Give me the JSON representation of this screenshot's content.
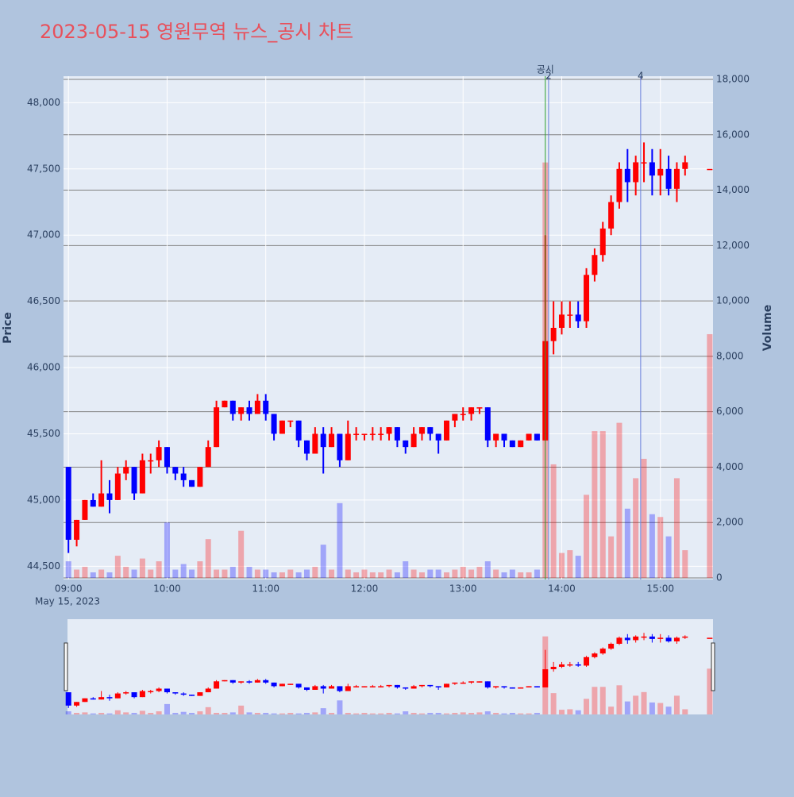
{
  "chart_data": {
    "type": "candlestick",
    "title": "2023-05-15 영원무역 뉴스_공시 차트",
    "x_date_label": "May 15, 2023",
    "y_label": "Price",
    "y2_label": "Volume",
    "increasing_color": "#ff0000",
    "decreasing_color": "#0000ff",
    "xlim": [
      "08:57",
      "15:32"
    ],
    "xticks": [
      "09:00",
      "10:00",
      "11:00",
      "12:00",
      "13:00",
      "14:00",
      "15:00"
    ],
    "ylim": [
      44400,
      48200
    ],
    "yticks": [
      {
        "value": 44500,
        "label": "44,500"
      },
      {
        "value": 45000,
        "label": "45,000"
      },
      {
        "value": 45500,
        "label": "45,500"
      },
      {
        "value": 46000,
        "label": "46,000"
      },
      {
        "value": 46500,
        "label": "46,500"
      },
      {
        "value": 47000,
        "label": "47,000"
      },
      {
        "value": 47500,
        "label": "47,500"
      },
      {
        "value": 48000,
        "label": "48,000"
      }
    ],
    "y2lim": [
      0,
      18000
    ],
    "y2ticks": [
      0,
      {
        "value": 2000,
        "label": "2,000"
      },
      {
        "value": 4000,
        "label": "4,000"
      },
      {
        "value": 6000,
        "label": "6,000"
      },
      {
        "value": 8000,
        "label": "8,000"
      },
      {
        "value": 10000,
        "label": "10,000"
      },
      {
        "value": 12000,
        "label": "12,000"
      },
      {
        "value": 14000,
        "label": "14,000"
      },
      {
        "value": 16000,
        "label": "16,000"
      },
      {
        "value": 18000,
        "label": "18,000"
      }
    ],
    "annotations": [
      {
        "x": "13:50",
        "text": "공시",
        "color": "#2ca02c"
      },
      {
        "x": "13:52",
        "text": "2",
        "color": "#6a7fdb"
      },
      {
        "x": "14:48",
        "text": "4",
        "color": "#6a7fdb"
      }
    ],
    "x": [
      "09:00",
      "09:05",
      "09:10",
      "09:15",
      "09:20",
      "09:25",
      "09:30",
      "09:35",
      "09:40",
      "09:45",
      "09:50",
      "09:55",
      "10:00",
      "10:05",
      "10:10",
      "10:15",
      "10:20",
      "10:25",
      "10:30",
      "10:35",
      "10:40",
      "10:45",
      "10:50",
      "10:55",
      "11:00",
      "11:05",
      "11:10",
      "11:15",
      "11:20",
      "11:25",
      "11:30",
      "11:35",
      "11:40",
      "11:45",
      "11:50",
      "11:55",
      "12:00",
      "12:05",
      "12:10",
      "12:15",
      "12:20",
      "12:25",
      "12:30",
      "12:35",
      "12:40",
      "12:45",
      "12:50",
      "12:55",
      "13:00",
      "13:05",
      "13:10",
      "13:15",
      "13:20",
      "13:25",
      "13:30",
      "13:35",
      "13:40",
      "13:45",
      "13:50",
      "13:55",
      "14:00",
      "14:05",
      "14:10",
      "14:15",
      "14:20",
      "14:25",
      "14:30",
      "14:35",
      "14:40",
      "14:45",
      "14:50",
      "14:55",
      "15:00",
      "15:05",
      "15:10",
      "15:15",
      "15:30"
    ],
    "open": [
      45250,
      44700,
      44850,
      45000,
      44950,
      45050,
      45000,
      45200,
      45250,
      45050,
      45300,
      45300,
      45400,
      45250,
      45200,
      45150,
      45100,
      45250,
      45400,
      45700,
      45750,
      45650,
      45700,
      45650,
      45750,
      45650,
      45500,
      45600,
      45600,
      45450,
      45350,
      45500,
      45400,
      45500,
      45300,
      45500,
      45500,
      45500,
      45500,
      45500,
      45550,
      45450,
      45400,
      45500,
      45550,
      45500,
      45450,
      45600,
      45650,
      45650,
      45700,
      45700,
      45450,
      45500,
      45450,
      45400,
      45450,
      45500,
      45450,
      46200,
      46300,
      46400,
      46400,
      46350,
      46700,
      46850,
      47050,
      47250,
      47500,
      47400,
      47550,
      47550,
      47450,
      47500,
      47350,
      47500,
      47500
    ],
    "high": [
      45250,
      44850,
      45000,
      45050,
      45300,
      45150,
      45250,
      45300,
      45250,
      45350,
      45350,
      45450,
      45400,
      45250,
      45250,
      45150,
      45250,
      45450,
      45750,
      45750,
      45750,
      45700,
      45750,
      45800,
      45800,
      45650,
      45600,
      45600,
      45600,
      45450,
      45550,
      45550,
      45550,
      45500,
      45600,
      45550,
      45500,
      45550,
      45550,
      45550,
      45550,
      45450,
      45550,
      45550,
      45550,
      45500,
      45600,
      45650,
      45700,
      45700,
      45700,
      45700,
      45500,
      45500,
      45450,
      45450,
      45500,
      45500,
      47000,
      46500,
      46500,
      46500,
      46500,
      46750,
      46900,
      47100,
      47300,
      47550,
      47650,
      47600,
      47700,
      47650,
      47650,
      47600,
      47550,
      47600,
      47500
    ],
    "low": [
      44600,
      44650,
      44850,
      44950,
      44950,
      44900,
      45000,
      45150,
      45000,
      45050,
      45200,
      45250,
      45200,
      45150,
      45100,
      45100,
      45100,
      45250,
      45400,
      45700,
      45600,
      45600,
      45600,
      45650,
      45600,
      45450,
      45500,
      45550,
      45400,
      45300,
      45350,
      45200,
      45400,
      45250,
      45300,
      45450,
      45450,
      45450,
      45450,
      45450,
      45400,
      45350,
      45400,
      45450,
      45450,
      45350,
      45450,
      45550,
      45600,
      45600,
      45650,
      45400,
      45400,
      45400,
      45400,
      45400,
      45450,
      45450,
      45450,
      46100,
      46250,
      46300,
      46300,
      46300,
      46650,
      46800,
      47000,
      47200,
      47250,
      47300,
      47400,
      47300,
      47300,
      47300,
      47250,
      47450,
      47500
    ],
    "close": [
      44700,
      44850,
      45000,
      44950,
      45050,
      45000,
      45200,
      45250,
      45050,
      45300,
      45300,
      45400,
      45250,
      45200,
      45150,
      45100,
      45250,
      45400,
      45700,
      45750,
      45650,
      45700,
      45650,
      45750,
      45650,
      45500,
      45600,
      45600,
      45450,
      45350,
      45500,
      45400,
      45500,
      45300,
      45500,
      45500,
      45500,
      45500,
      45500,
      45550,
      45450,
      45400,
      45500,
      45550,
      45500,
      45450,
      45600,
      45650,
      45650,
      45700,
      45700,
      45450,
      45500,
      45450,
      45400,
      45450,
      45500,
      45450,
      46200,
      46300,
      46400,
      46400,
      46350,
      46700,
      46850,
      47050,
      47250,
      47500,
      47400,
      47550,
      47550,
      47450,
      47500,
      47350,
      47500,
      47550,
      47500
    ],
    "volume": [
      600,
      300,
      400,
      200,
      300,
      200,
      800,
      400,
      300,
      700,
      300,
      600,
      2000,
      300,
      500,
      300,
      600,
      1400,
      300,
      300,
      400,
      1700,
      400,
      300,
      300,
      200,
      200,
      300,
      200,
      300,
      400,
      1200,
      300,
      2700,
      300,
      200,
      300,
      200,
      200,
      300,
      200,
      600,
      300,
      200,
      300,
      300,
      200,
      300,
      400,
      300,
      400,
      600,
      300,
      200,
      300,
      200,
      200,
      300,
      15000,
      4100,
      900,
      1000,
      800,
      3000,
      5300,
      5300,
      1500,
      5600,
      2500,
      3600,
      4300,
      2300,
      2200,
      1500,
      3600,
      1000,
      8800
    ]
  }
}
